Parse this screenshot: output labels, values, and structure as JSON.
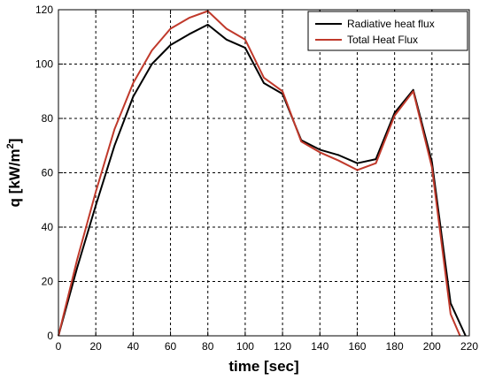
{
  "chart_data": {
    "type": "line",
    "title": "",
    "xlabel": "time [sec]",
    "ylabel_main": "q [kW/m",
    "ylabel_sup": "2",
    "ylabel_close": "]",
    "xlim": [
      0,
      220
    ],
    "ylim": [
      0,
      120
    ],
    "xticks": [
      0,
      20,
      40,
      60,
      80,
      100,
      120,
      140,
      160,
      180,
      200,
      220
    ],
    "yticks": [
      0,
      20,
      40,
      60,
      80,
      100,
      120
    ],
    "grid": true,
    "legend_position": "top-right",
    "series": [
      {
        "name": "Radiative heat flux",
        "color": "#000000",
        "x": [
          0,
          10,
          20,
          30,
          40,
          50,
          60,
          70,
          80,
          90,
          100,
          110,
          120,
          130,
          140,
          150,
          160,
          170,
          180,
          190,
          200,
          210,
          218
        ],
        "y": [
          0,
          25,
          48,
          70,
          88,
          100,
          107,
          111,
          114.5,
          109,
          106,
          93,
          89,
          72,
          68.5,
          66.5,
          63.5,
          65,
          82,
          90.5,
          64,
          12,
          0
        ]
      },
      {
        "name": "Total Heat Flux",
        "color": "#c0392b",
        "x": [
          0,
          10,
          20,
          30,
          40,
          50,
          60,
          70,
          80,
          90,
          100,
          110,
          120,
          130,
          140,
          150,
          160,
          170,
          180,
          190,
          200,
          210,
          215
        ],
        "y": [
          0,
          28,
          53,
          76,
          93,
          105,
          113,
          117,
          119.5,
          113,
          109,
          95,
          90,
          71.5,
          67.5,
          64.5,
          61,
          63.5,
          81,
          90,
          62,
          8,
          0
        ]
      }
    ]
  }
}
